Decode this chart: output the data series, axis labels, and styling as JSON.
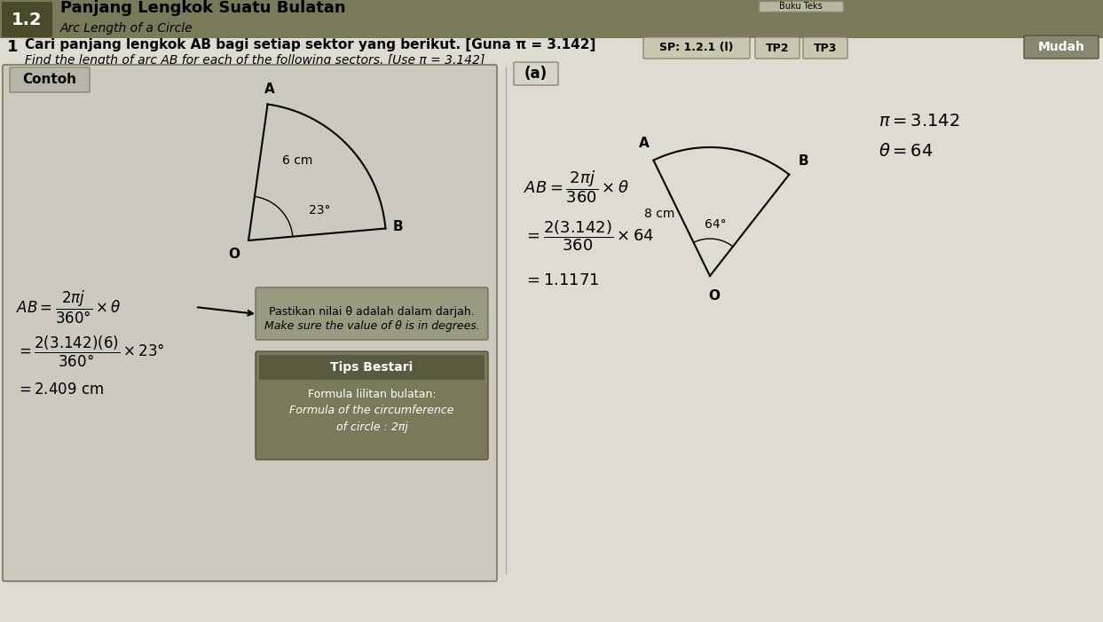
{
  "page_bg": "#e0dbd0",
  "header_bg": "#7a7a5a",
  "header_num_bg": "#4a4a2a",
  "title_main": "Panjang Lengkok Suatu Bulatan",
  "title_sub": "Arc Length of a Circle",
  "section_num": "1.2",
  "question_num": "1",
  "question_ms": "Cari panjang lengkok AB bagi setiap sektor yang berikut.",
  "question_bracket_ms": "[Guna π = 3.142]",
  "question_en": "Find the length of arc AB for each of the following sectors.",
  "question_bracket_en": "[Use π = 3.142]",
  "sp_label": "SP: 1.2.1 (l)",
  "tp2_label": "TP2",
  "tp3_label": "TP3",
  "mudah_label": "Mudah",
  "contoh_label": "Contoh",
  "part_a_label": "(a)",
  "example_radius_label": "6 cm",
  "example_angle_label": "23°",
  "part_a_radius_label": "8 cm",
  "part_a_angle_label": "64°",
  "note_ms": "Pastikan nilai θ adalah dalam darjah.",
  "note_en": "Make sure the value of θ is in degrees.",
  "tips_title": "Tips Bestari",
  "tips_line1": "Formula lilitan bulatan:",
  "tips_line2": "Formula of the circumference",
  "tips_line3": "of circle : 2πj",
  "contoh_box_color": "#cdc9be",
  "tips_box_color": "#7a7a5a",
  "note_box_color": "#9a9a80"
}
